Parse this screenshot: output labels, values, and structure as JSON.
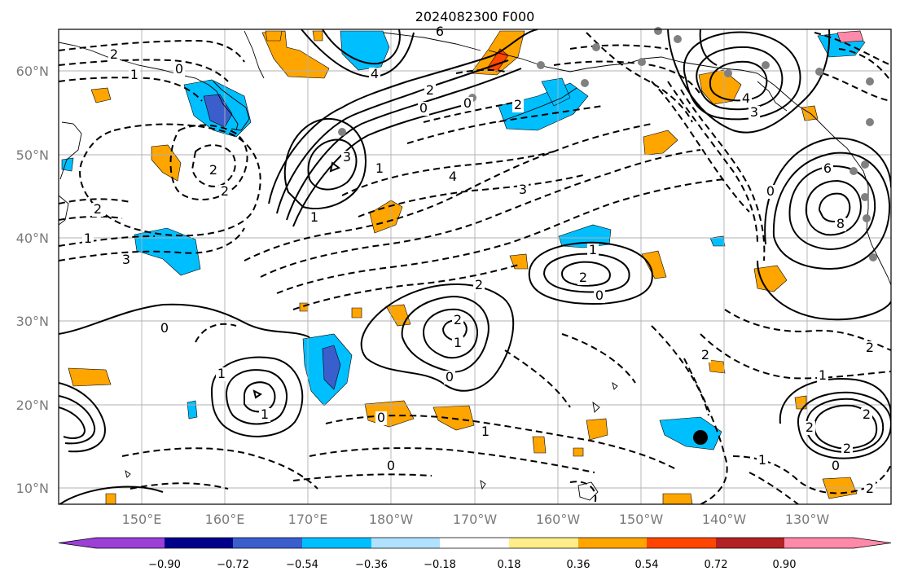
{
  "title": "2024082300 F000",
  "lon_ticks": [
    "150°E",
    "160°E",
    "170°E",
    "180°W",
    "170°W",
    "160°W",
    "150°W",
    "140°W",
    "130°W"
  ],
  "lat_ticks": [
    "10°N",
    "20°N",
    "30°N",
    "40°N",
    "50°N",
    "60°N"
  ],
  "colorbar": {
    "ticks": [
      "−0.90",
      "−0.72",
      "−0.54",
      "−0.36",
      "−0.18",
      "0.18",
      "0.36",
      "0.54",
      "0.72",
      "0.90"
    ],
    "colors": [
      "#9b3fd6",
      "#00008b",
      "#3a5fcd",
      "#00bfff",
      "#b0e2ff",
      "#ffffff",
      "#ffec8b",
      "#ffa500",
      "#ff4500",
      "#b22222",
      "#ff89a8"
    ]
  },
  "contour_labels": [
    {
      "text": "2"
    },
    {
      "text": "1"
    },
    {
      "text": "0"
    },
    {
      "text": "2"
    },
    {
      "text": "2"
    },
    {
      "text": "2"
    },
    {
      "text": "1"
    },
    {
      "text": "3"
    },
    {
      "text": "4"
    },
    {
      "text": "6"
    },
    {
      "text": "2"
    },
    {
      "text": "0"
    },
    {
      "text": "0"
    },
    {
      "text": "3"
    },
    {
      "text": "1"
    },
    {
      "text": "1"
    },
    {
      "text": "4"
    },
    {
      "text": "3"
    },
    {
      "text": "2"
    },
    {
      "text": "4"
    },
    {
      "text": "3"
    },
    {
      "text": "6"
    },
    {
      "text": "8"
    },
    {
      "text": "0"
    },
    {
      "text": "1"
    },
    {
      "text": "2"
    },
    {
      "text": "0"
    },
    {
      "text": "2"
    },
    {
      "text": "2"
    },
    {
      "text": "1"
    },
    {
      "text": "0"
    },
    {
      "text": "1"
    },
    {
      "text": "0"
    },
    {
      "text": "1"
    },
    {
      "text": "0"
    },
    {
      "text": "0"
    },
    {
      "text": "2"
    },
    {
      "text": "2"
    },
    {
      "text": "1"
    },
    {
      "text": "2"
    },
    {
      "text": "2"
    },
    {
      "text": "2"
    },
    {
      "text": "1"
    },
    {
      "text": "0"
    },
    {
      "text": "2"
    },
    {
      "text": "1"
    }
  ]
}
